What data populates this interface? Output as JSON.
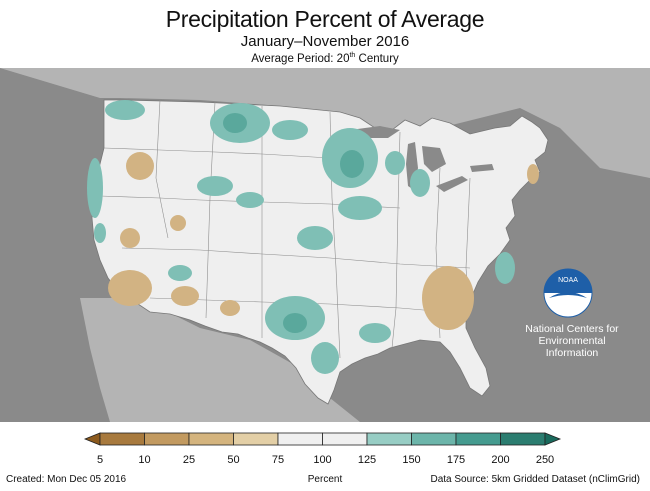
{
  "header": {
    "title": "Precipitation Percent of Average",
    "subtitle": "January–November 2016",
    "period_prefix": "Average Period: 20",
    "period_sup": "th",
    "period_suffix": " Century"
  },
  "branding": {
    "logo_text": "NOAA",
    "org_line1": "National Centers for",
    "org_line2": "Environmental",
    "org_line3": "Information"
  },
  "legend": {
    "label": "Percent",
    "ticks": [
      "5",
      "10",
      "25",
      "50",
      "75",
      "100",
      "125",
      "150",
      "175",
      "200",
      "250"
    ],
    "colors": [
      "#8c5a1e",
      "#a87a3e",
      "#c29a60",
      "#d4b47e",
      "#e3cfa6",
      "#f0f0f0",
      "#f0f0f0",
      "#97cdc4",
      "#6cb5aa",
      "#459b8f",
      "#2b7d70",
      "#1a6a5d"
    ]
  },
  "footer": {
    "created": "Created: Mon Dec 05 2016",
    "source": "Data Source: 5km Gridded Dataset (nClimGrid)"
  },
  "colors": {
    "land": "#efefef",
    "water": "#8a8a8a",
    "other_land": "#b4b4b4",
    "wet": "#7fbfb5",
    "wetter": "#5aa89c",
    "dry": "#d2b383"
  }
}
